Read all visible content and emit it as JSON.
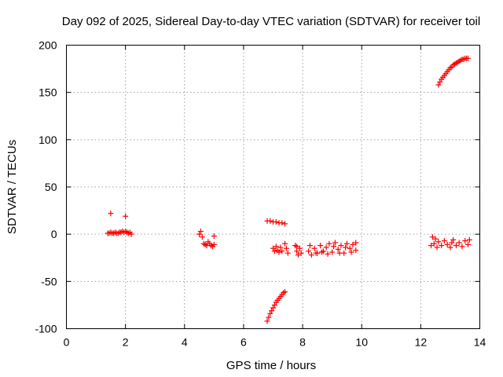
{
  "chart_data": {
    "type": "scatter",
    "title": "Day 092 of 2025, Sidereal Day-to-day VTEC variation (SDTVAR) for receiver toil",
    "xlabel": "GPS time / hours",
    "ylabel": "SDTVAR / TECUs",
    "xlim": [
      0,
      14
    ],
    "ylim": [
      -100,
      200
    ],
    "xticks": [
      0,
      2,
      4,
      6,
      8,
      10,
      12,
      14
    ],
    "yticks": [
      -100,
      -50,
      0,
      50,
      100,
      150,
      200
    ],
    "xtick_labels": [
      "0",
      "2",
      "4",
      "6",
      "8",
      "10",
      "12",
      "14"
    ],
    "ytick_labels": [
      "-100",
      "-50",
      "0",
      "50",
      "100",
      "150",
      "200"
    ],
    "grid": true,
    "marker": "plus",
    "marker_color": "#ff0000",
    "series": [
      {
        "points": [
          [
            1.5,
            22
          ],
          [
            2.0,
            19
          ],
          [
            1.4,
            1
          ],
          [
            1.45,
            1
          ],
          [
            1.5,
            2
          ],
          [
            1.55,
            1
          ],
          [
            1.6,
            1
          ],
          [
            1.65,
            2
          ],
          [
            1.7,
            1
          ],
          [
            1.75,
            1
          ],
          [
            1.8,
            2
          ],
          [
            1.85,
            2
          ],
          [
            1.9,
            3
          ],
          [
            1.95,
            2
          ],
          [
            2.0,
            3
          ],
          [
            2.05,
            2
          ],
          [
            2.1,
            1
          ],
          [
            2.15,
            2
          ],
          [
            2.2,
            0
          ],
          [
            4.5,
            0
          ],
          [
            4.55,
            3
          ],
          [
            4.6,
            -3
          ],
          [
            4.65,
            -10
          ],
          [
            4.7,
            -11
          ],
          [
            4.75,
            -12
          ],
          [
            4.8,
            -8
          ],
          [
            4.85,
            -10
          ],
          [
            4.9,
            -12
          ],
          [
            4.95,
            -13
          ],
          [
            5.0,
            -2
          ],
          [
            5.0,
            -11
          ],
          [
            6.8,
            14
          ],
          [
            6.9,
            14
          ],
          [
            7.0,
            13
          ],
          [
            7.1,
            13
          ],
          [
            7.2,
            12
          ],
          [
            7.3,
            12
          ],
          [
            7.4,
            11
          ],
          [
            6.8,
            -92
          ],
          [
            6.85,
            -88
          ],
          [
            6.9,
            -84
          ],
          [
            6.95,
            -81
          ],
          [
            7.0,
            -78
          ],
          [
            7.05,
            -75
          ],
          [
            7.1,
            -72
          ],
          [
            7.15,
            -70
          ],
          [
            7.2,
            -68
          ],
          [
            7.25,
            -66
          ],
          [
            7.3,
            -64
          ],
          [
            7.35,
            -62
          ],
          [
            7.4,
            -61
          ],
          [
            7.0,
            -15
          ],
          [
            7.05,
            -18
          ],
          [
            7.1,
            -13
          ],
          [
            7.15,
            -17
          ],
          [
            7.2,
            -19
          ],
          [
            7.25,
            -14
          ],
          [
            7.3,
            -18
          ],
          [
            7.4,
            -10
          ],
          [
            7.45,
            -15
          ],
          [
            7.5,
            -20
          ],
          [
            7.75,
            -12
          ],
          [
            7.8,
            -18
          ],
          [
            7.85,
            -22
          ],
          [
            7.9,
            -15
          ],
          [
            7.95,
            -20
          ],
          [
            7.8,
            -13
          ],
          [
            8.2,
            -18
          ],
          [
            8.3,
            -22
          ],
          [
            8.4,
            -15
          ],
          [
            8.5,
            -20
          ],
          [
            8.6,
            -12
          ],
          [
            8.7,
            -18
          ],
          [
            8.8,
            -14
          ],
          [
            8.9,
            -10
          ],
          [
            9.0,
            -19
          ],
          [
            9.1,
            -9
          ],
          [
            9.2,
            -16
          ],
          [
            9.3,
            -12
          ],
          [
            9.4,
            -20
          ],
          [
            9.5,
            -10
          ],
          [
            9.6,
            -15
          ],
          [
            9.7,
            -11
          ],
          [
            9.8,
            -17
          ],
          [
            9.8,
            -9
          ],
          [
            8.25,
            -12
          ],
          [
            8.45,
            -20
          ],
          [
            8.65,
            -19
          ],
          [
            8.85,
            -21
          ],
          [
            9.05,
            -13
          ],
          [
            9.25,
            -20
          ],
          [
            9.45,
            -14
          ],
          [
            9.65,
            -19
          ],
          [
            12.35,
            -12
          ],
          [
            12.4,
            -3
          ],
          [
            12.45,
            -10
          ],
          [
            12.5,
            -5
          ],
          [
            12.55,
            -14
          ],
          [
            12.6,
            -8
          ],
          [
            12.7,
            -12
          ],
          [
            12.8,
            -7
          ],
          [
            12.9,
            -11
          ],
          [
            13.0,
            -14
          ],
          [
            13.1,
            -6
          ],
          [
            13.2,
            -12
          ],
          [
            13.3,
            -9
          ],
          [
            13.4,
            -13
          ],
          [
            13.5,
            -7
          ],
          [
            13.6,
            -11
          ],
          [
            13.65,
            -6
          ],
          [
            13.05,
            -9
          ],
          [
            12.6,
            158
          ],
          [
            12.65,
            161
          ],
          [
            12.7,
            164
          ],
          [
            12.75,
            166
          ],
          [
            12.8,
            168
          ],
          [
            12.85,
            170
          ],
          [
            12.9,
            172
          ],
          [
            12.95,
            174
          ],
          [
            13.0,
            176
          ],
          [
            13.05,
            177
          ],
          [
            13.1,
            179
          ],
          [
            13.15,
            180
          ],
          [
            13.2,
            181
          ],
          [
            13.25,
            182
          ],
          [
            13.3,
            183
          ],
          [
            13.35,
            184
          ],
          [
            13.4,
            185
          ],
          [
            13.45,
            185
          ],
          [
            13.5,
            186
          ],
          [
            13.55,
            186
          ],
          [
            13.6,
            186
          ]
        ]
      }
    ]
  }
}
